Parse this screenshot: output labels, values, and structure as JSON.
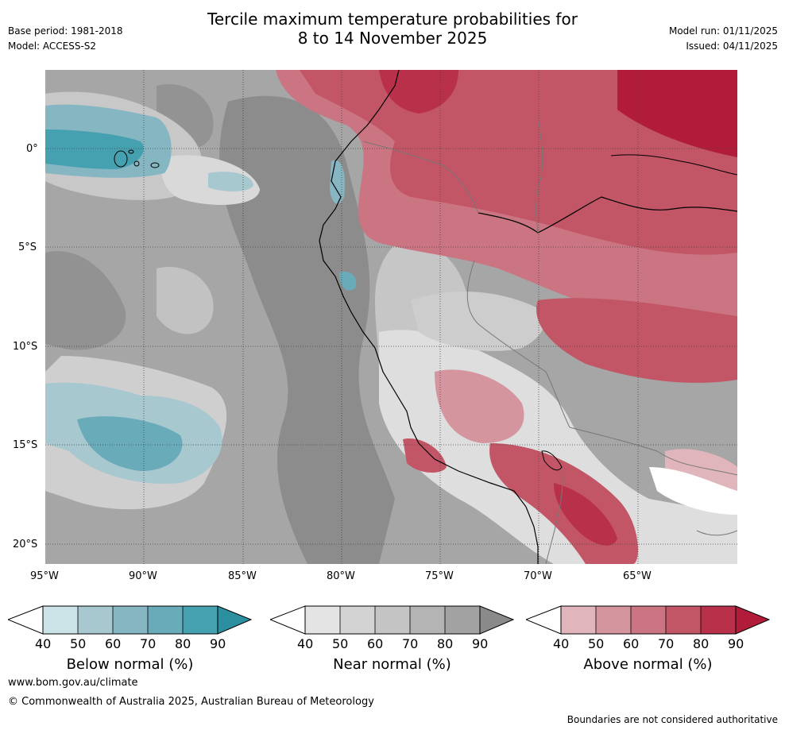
{
  "header": {
    "title_line1": "Tercile maximum temperature probabilities for",
    "title_line2": "8 to 14 November 2025",
    "base_period": "Base period: 1981-2018",
    "model": "Model: ACCESS-S2",
    "model_run": "Model run: 01/11/2025",
    "issued": "Issued: 04/11/2025"
  },
  "map": {
    "lat_labels": [
      "0°",
      "5°S",
      "10°S",
      "15°S",
      "20°S"
    ],
    "lon_labels": [
      "95°W",
      "90°W",
      "85°W",
      "80°W",
      "75°W",
      "70°W",
      "65°W"
    ]
  },
  "legends": [
    {
      "title": "Below normal (%)",
      "ticks": [
        "40",
        "50",
        "60",
        "70",
        "80",
        "90"
      ],
      "colors": [
        "#cbe2e7",
        "#a7c8cf",
        "#87b6c3",
        "#6aabb9",
        "#45a0b0",
        "#2b8f9f"
      ]
    },
    {
      "title": "Near normal (%)",
      "ticks": [
        "40",
        "50",
        "60",
        "70",
        "80",
        "90"
      ],
      "colors": [
        "#e4e4e4",
        "#d3d3d3",
        "#c4c4c4",
        "#b4b4b4",
        "#a2a2a2",
        "#8a8a8a"
      ]
    },
    {
      "title": "Above normal (%)",
      "ticks": [
        "40",
        "50",
        "60",
        "70",
        "80",
        "90"
      ],
      "colors": [
        "#e0b5bc",
        "#d4959f",
        "#cb7582",
        "#c25666",
        "#b8304a",
        "#b01c3a"
      ]
    }
  ],
  "footer": {
    "url": "www.bom.gov.au/climate",
    "copyright": "© Commonwealth of Australia 2025, Australian Bureau of Meteorology",
    "disclaimer": "Boundaries are not considered authoritative"
  }
}
